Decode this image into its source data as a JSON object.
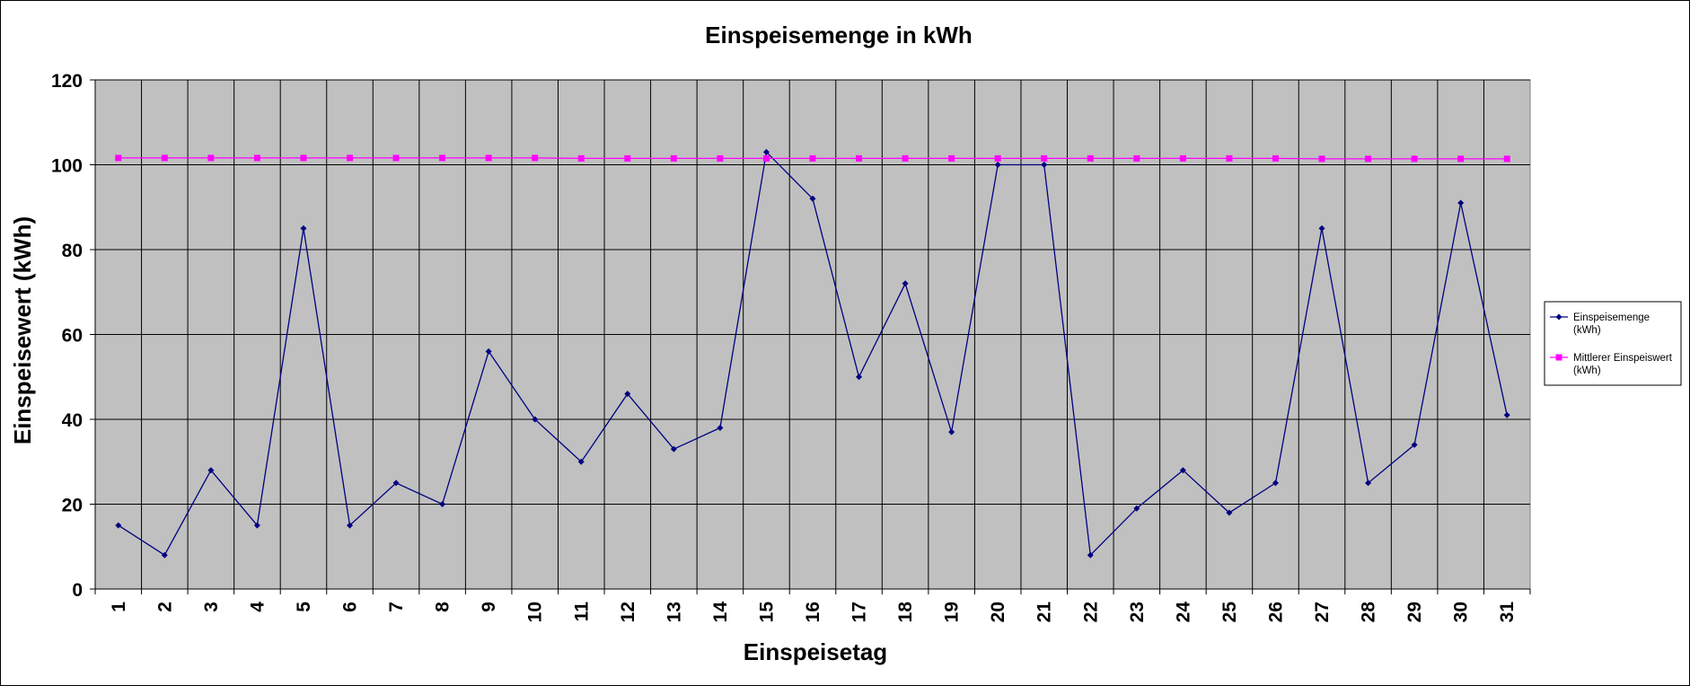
{
  "chart_data": {
    "type": "line",
    "title": "Einspeisemenge in kWh",
    "xlabel": "Einspeisetag",
    "ylabel": "Einspeisewert  (kWh)",
    "categories": [
      "1",
      "2",
      "3",
      "4",
      "5",
      "6",
      "7",
      "8",
      "9",
      "10",
      "11",
      "12",
      "13",
      "14",
      "15",
      "16",
      "17",
      "18",
      "19",
      "20",
      "21",
      "22",
      "23",
      "24",
      "25",
      "26",
      "27",
      "28",
      "29",
      "30",
      "31"
    ],
    "ylim": [
      0,
      120
    ],
    "yticks": [
      "0",
      "20",
      "40",
      "60",
      "80",
      "100",
      "120"
    ],
    "grid": true,
    "legend_position": "right",
    "series": [
      {
        "name": "Einspeisemenge (kWh)",
        "legend_lines": [
          "Einspeisemenge",
          "(kWh)"
        ],
        "color": "#000080",
        "marker": "diamond",
        "values": [
          15,
          8,
          28,
          15,
          85,
          15,
          25,
          20,
          56,
          40,
          30,
          46,
          33,
          38,
          103,
          92,
          50,
          72,
          37,
          100,
          100,
          8,
          19,
          28,
          18,
          25,
          85,
          25,
          34,
          91,
          41
        ]
      },
      {
        "name": "Mittlerer Einspeiswert (kWh)",
        "legend_lines": [
          "Mittlerer Einspeiswert",
          "(kWh)"
        ],
        "color": "#ff00ff",
        "marker": "square",
        "values": [
          101.6,
          101.6,
          101.6,
          101.6,
          101.6,
          101.6,
          101.6,
          101.6,
          101.6,
          101.6,
          101.5,
          101.5,
          101.5,
          101.5,
          101.5,
          101.5,
          101.5,
          101.5,
          101.5,
          101.5,
          101.5,
          101.5,
          101.5,
          101.5,
          101.5,
          101.5,
          101.4,
          101.4,
          101.4,
          101.4,
          101.4
        ]
      }
    ]
  },
  "colors": {
    "plot_background": "#c0c0c0",
    "gridline": "#000000"
  }
}
